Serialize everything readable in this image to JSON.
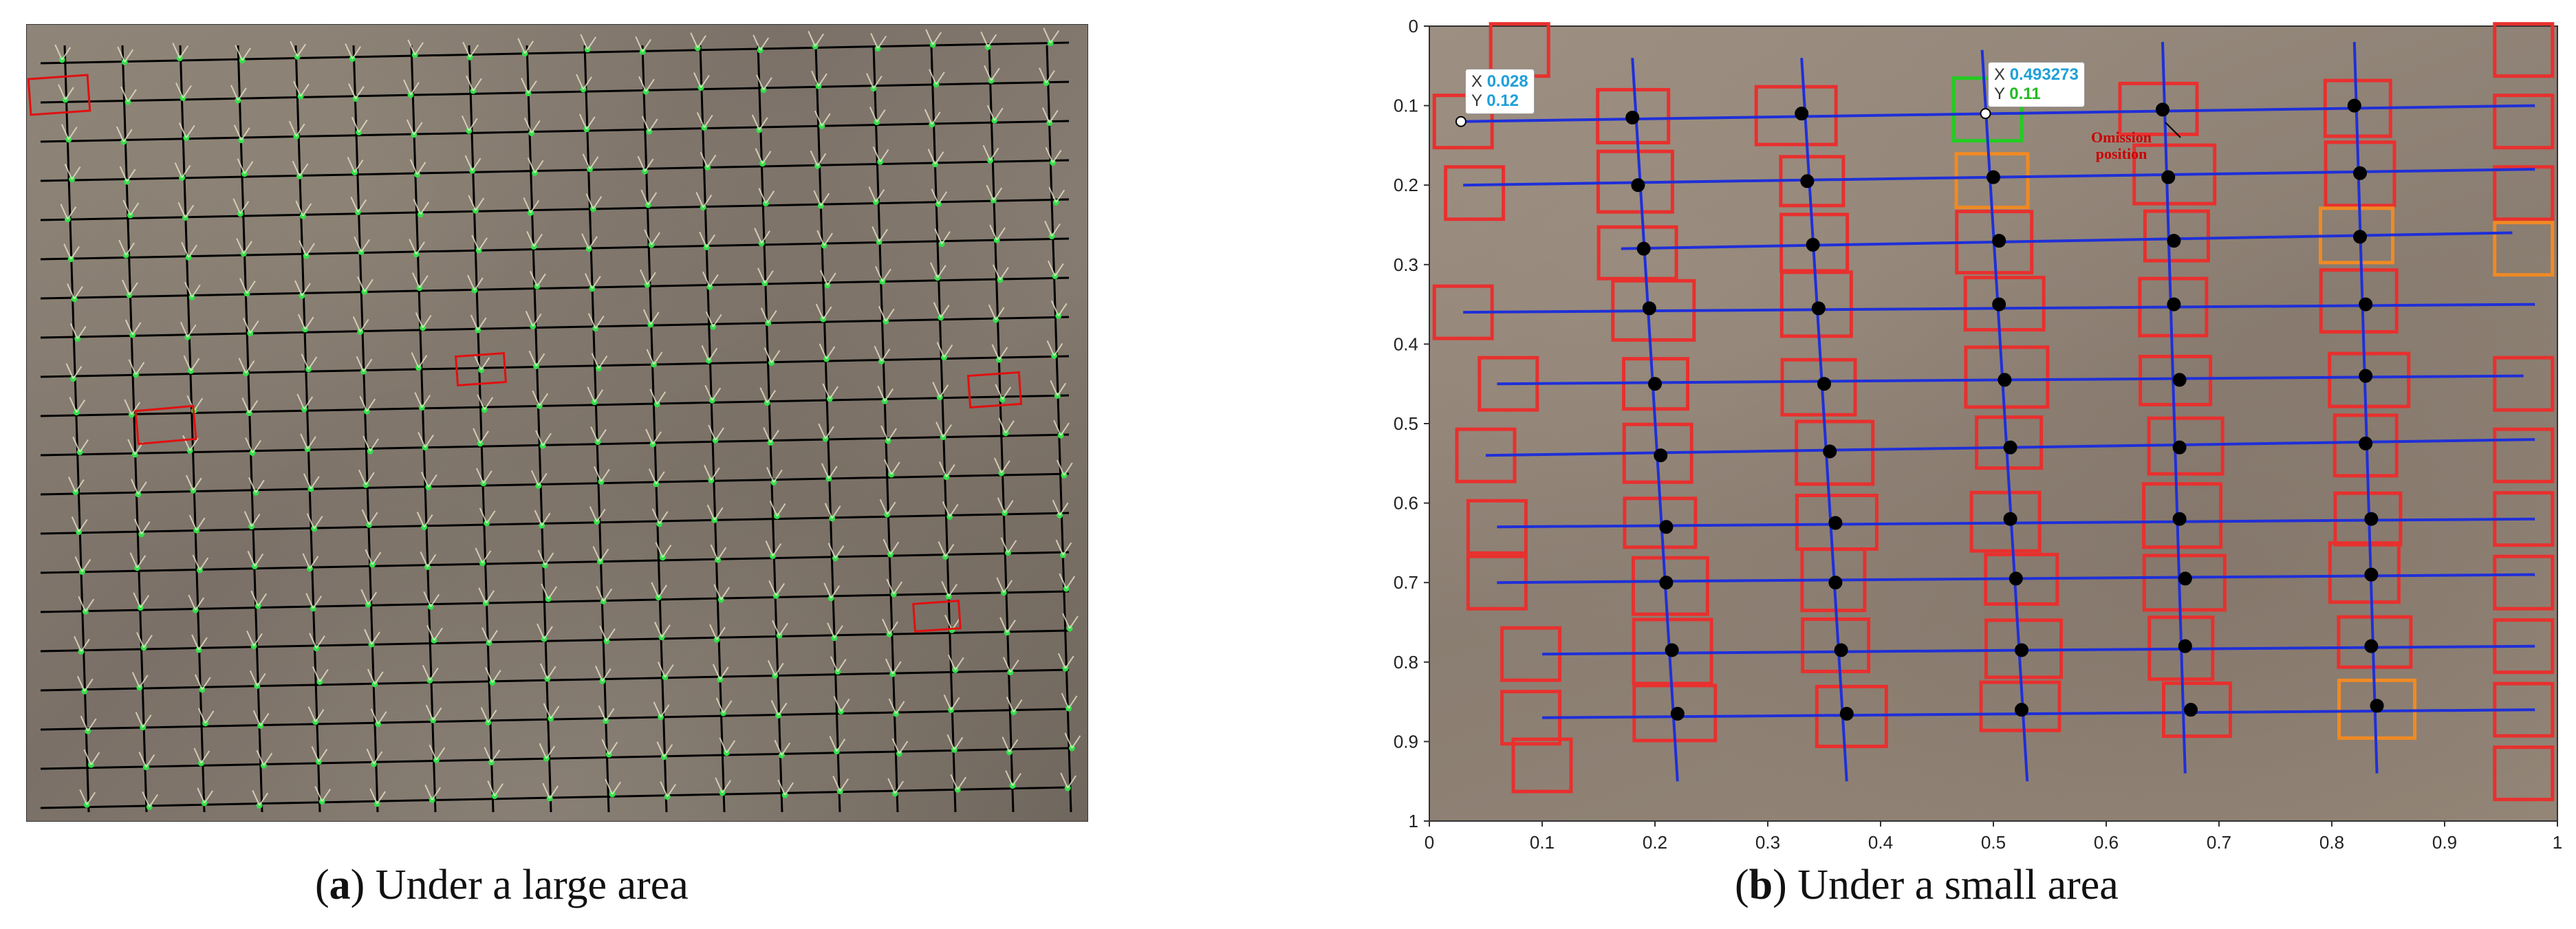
{
  "captions": {
    "a": {
      "open": "(",
      "letter": "a",
      "rest": ") Under a large area"
    },
    "b": {
      "open": "(",
      "letter": "b",
      "rest": ") Under a small area"
    }
  },
  "panel_b": {
    "tooltip_1": {
      "x_label": "X",
      "x_value": "0.028",
      "y_label": "Y",
      "y_value": "0.12"
    },
    "tooltip_2": {
      "x_label": "X",
      "x_value": "0.493273",
      "y_label": "Y",
      "y_value": "0.11"
    },
    "annotation": {
      "line1": "Omission",
      "line2": "position"
    },
    "colors": {
      "detected_box": "#e8302e",
      "omission_box": "#22cc22",
      "uncertain_box": "#f08a24",
      "row_line": "#1f2fd8",
      "point": "#000000"
    }
  },
  "chart_data": {
    "type": "scatter",
    "title": "",
    "xlabel": "",
    "ylabel": "",
    "xlim": [
      0,
      1
    ],
    "ylim": [
      0,
      1
    ],
    "x_ticks": [
      "0",
      "0.1",
      "0.2",
      "0.3",
      "0.4",
      "0.5",
      "0.6",
      "0.7",
      "0.8",
      "0.9",
      "1"
    ],
    "y_ticks": [
      "0",
      "0.1",
      "0.2",
      "0.3",
      "0.4",
      "0.5",
      "0.6",
      "0.7",
      "0.8",
      "0.9",
      "1"
    ],
    "y_inverted": true,
    "column_lines": [
      {
        "x_top": 0.18,
        "y_top": 0.04,
        "x_bottom": 0.22,
        "y_bottom": 0.95
      },
      {
        "x_top": 0.33,
        "y_top": 0.04,
        "x_bottom": 0.37,
        "y_bottom": 0.95
      },
      {
        "x_top": 0.49,
        "y_top": 0.03,
        "x_bottom": 0.53,
        "y_bottom": 0.95
      },
      {
        "x_top": 0.65,
        "y_top": 0.02,
        "x_bottom": 0.67,
        "y_bottom": 0.94
      },
      {
        "x_top": 0.82,
        "y_top": 0.02,
        "x_bottom": 0.84,
        "y_bottom": 0.94
      }
    ],
    "row_lines": [
      {
        "x_start": 0.03,
        "y_start": 0.12,
        "x_end": 0.98,
        "y_end": 0.1
      },
      {
        "x_start": 0.03,
        "y_start": 0.2,
        "x_end": 0.98,
        "y_end": 0.18
      },
      {
        "x_start": 0.17,
        "y_start": 0.28,
        "x_end": 0.96,
        "y_end": 0.26
      },
      {
        "x_start": 0.03,
        "y_start": 0.36,
        "x_end": 0.98,
        "y_end": 0.35
      },
      {
        "x_start": 0.06,
        "y_start": 0.45,
        "x_end": 0.97,
        "y_end": 0.44
      },
      {
        "x_start": 0.05,
        "y_start": 0.54,
        "x_end": 0.98,
        "y_end": 0.52
      },
      {
        "x_start": 0.06,
        "y_start": 0.63,
        "x_end": 0.98,
        "y_end": 0.62
      },
      {
        "x_start": 0.06,
        "y_start": 0.7,
        "x_end": 0.98,
        "y_end": 0.69
      },
      {
        "x_start": 0.1,
        "y_start": 0.79,
        "x_end": 0.98,
        "y_end": 0.78
      },
      {
        "x_start": 0.1,
        "y_start": 0.87,
        "x_end": 0.98,
        "y_end": 0.86
      }
    ],
    "points": [
      {
        "x": 0.028,
        "y": 0.12
      },
      {
        "x": 0.18,
        "y": 0.115
      },
      {
        "x": 0.33,
        "y": 0.11
      },
      {
        "x": 0.493,
        "y": 0.11
      },
      {
        "x": 0.65,
        "y": 0.105
      },
      {
        "x": 0.82,
        "y": 0.1
      },
      {
        "x": 0.185,
        "y": 0.2
      },
      {
        "x": 0.335,
        "y": 0.195
      },
      {
        "x": 0.5,
        "y": 0.19
      },
      {
        "x": 0.655,
        "y": 0.19
      },
      {
        "x": 0.825,
        "y": 0.185
      },
      {
        "x": 0.19,
        "y": 0.28
      },
      {
        "x": 0.34,
        "y": 0.275
      },
      {
        "x": 0.505,
        "y": 0.27
      },
      {
        "x": 0.66,
        "y": 0.27
      },
      {
        "x": 0.825,
        "y": 0.265
      },
      {
        "x": 0.195,
        "y": 0.355
      },
      {
        "x": 0.345,
        "y": 0.355
      },
      {
        "x": 0.505,
        "y": 0.35
      },
      {
        "x": 0.66,
        "y": 0.35
      },
      {
        "x": 0.83,
        "y": 0.35
      },
      {
        "x": 0.2,
        "y": 0.45
      },
      {
        "x": 0.35,
        "y": 0.45
      },
      {
        "x": 0.51,
        "y": 0.445
      },
      {
        "x": 0.665,
        "y": 0.445
      },
      {
        "x": 0.83,
        "y": 0.44
      },
      {
        "x": 0.205,
        "y": 0.54
      },
      {
        "x": 0.355,
        "y": 0.535
      },
      {
        "x": 0.515,
        "y": 0.53
      },
      {
        "x": 0.665,
        "y": 0.53
      },
      {
        "x": 0.83,
        "y": 0.525
      },
      {
        "x": 0.21,
        "y": 0.63
      },
      {
        "x": 0.36,
        "y": 0.625
      },
      {
        "x": 0.515,
        "y": 0.62
      },
      {
        "x": 0.665,
        "y": 0.62
      },
      {
        "x": 0.835,
        "y": 0.62
      },
      {
        "x": 0.21,
        "y": 0.7
      },
      {
        "x": 0.36,
        "y": 0.7
      },
      {
        "x": 0.52,
        "y": 0.695
      },
      {
        "x": 0.67,
        "y": 0.695
      },
      {
        "x": 0.835,
        "y": 0.69
      },
      {
        "x": 0.215,
        "y": 0.785
      },
      {
        "x": 0.365,
        "y": 0.785
      },
      {
        "x": 0.525,
        "y": 0.785
      },
      {
        "x": 0.67,
        "y": 0.78
      },
      {
        "x": 0.835,
        "y": 0.78
      },
      {
        "x": 0.22,
        "y": 0.865
      },
      {
        "x": 0.37,
        "y": 0.865
      },
      {
        "x": 0.525,
        "y": 0.86
      },
      {
        "x": 0.675,
        "y": 0.86
      },
      {
        "x": 0.84,
        "y": 0.855
      }
    ]
  }
}
